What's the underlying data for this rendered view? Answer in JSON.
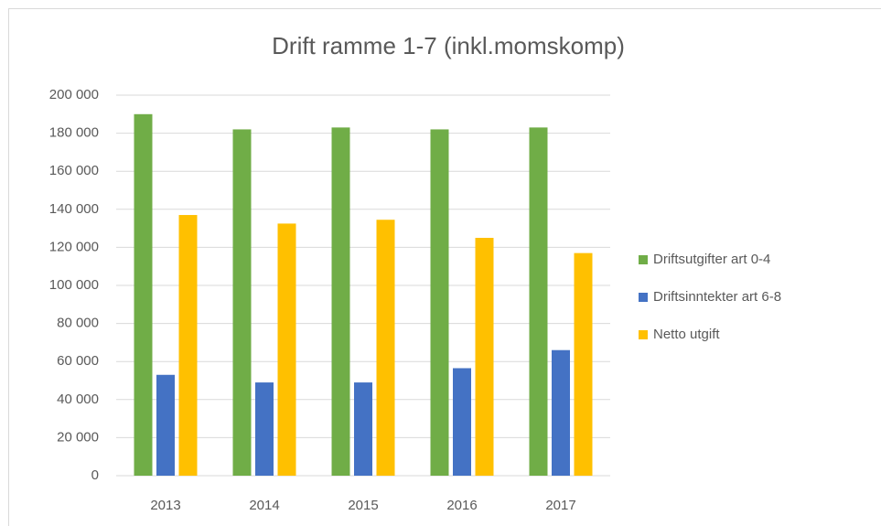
{
  "chart_data": {
    "type": "bar",
    "title": "Drift ramme 1-7 (inkl.momskomp)",
    "categories": [
      "2013",
      "2014",
      "2015",
      "2016",
      "2017"
    ],
    "series": [
      {
        "name": "Driftsutgifter art 0-4",
        "color": "#70ad47",
        "values": [
          190000,
          182000,
          183000,
          182000,
          183000
        ]
      },
      {
        "name": "Driftsinntekter art 6-8",
        "color": "#4472c4",
        "values": [
          53000,
          49000,
          49000,
          56500,
          66000
        ]
      },
      {
        "name": "Netto utgift",
        "color": "#ffc000",
        "values": [
          137000,
          132500,
          134500,
          125000,
          117000
        ]
      }
    ],
    "ylim": [
      0,
      200000
    ],
    "yticks": [
      0,
      {
        "value": 20000,
        "label": "20 000"
      },
      {
        "value": 40000,
        "label": "40 000"
      },
      {
        "value": 60000,
        "label": "60 000"
      },
      {
        "value": 80000,
        "label": "80 000"
      },
      {
        "value": 100000,
        "label": "100 000"
      },
      {
        "value": 120000,
        "label": "120 000"
      },
      {
        "value": 140000,
        "label": "140 000"
      },
      {
        "value": 160000,
        "label": "160 000"
      },
      {
        "value": 180000,
        "label": "180 000"
      },
      {
        "value": 200000,
        "label": "200 000"
      }
    ],
    "grid": true,
    "legend": "right"
  }
}
